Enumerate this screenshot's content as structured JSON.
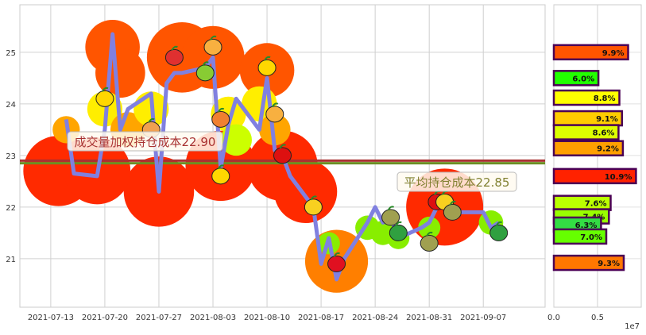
{
  "chart_data": [
    {
      "type": "line",
      "title": "",
      "xlabel": "",
      "ylabel": "",
      "ylim": [
        20.06,
        25.92
      ],
      "xlim": [
        "2021-07-09",
        "2021-09-15"
      ],
      "grid": true,
      "x_ticks": [
        "2021-07-13",
        "2021-07-20",
        "2021-07-27",
        "2021-08-03",
        "2021-08-10",
        "2021-08-17",
        "2021-08-24",
        "2021-08-31",
        "2021-09-07"
      ],
      "y_ticks": [
        21,
        22,
        23,
        24,
        25
      ],
      "line_color": "#8080e0",
      "price": [
        [
          "2021-07-15",
          23.7
        ],
        [
          "2021-07-16",
          22.65
        ],
        [
          "2021-07-19",
          22.6
        ],
        [
          "2021-07-20",
          23.5
        ],
        [
          "2021-07-21",
          25.35
        ],
        [
          "2021-07-22",
          23.5
        ],
        [
          "2021-07-23",
          23.9
        ],
        [
          "2021-07-26",
          24.2
        ],
        [
          "2021-07-27",
          22.3
        ],
        [
          "2021-07-28",
          24.4
        ],
        [
          "2021-07-29",
          24.6
        ],
        [
          "2021-07-30",
          24.6
        ],
        [
          "2021-08-02",
          24.7
        ],
        [
          "2021-08-03",
          24.9
        ],
        [
          "2021-08-04",
          22.75
        ],
        [
          "2021-08-05",
          23.6
        ],
        [
          "2021-08-06",
          24.1
        ],
        [
          "2021-08-09",
          23.5
        ],
        [
          "2021-08-10",
          24.5
        ],
        [
          "2021-08-11",
          23.1
        ],
        [
          "2021-08-12",
          23.0
        ],
        [
          "2021-08-13",
          22.6
        ],
        [
          "2021-08-16",
          22.0
        ],
        [
          "2021-08-17",
          20.9
        ],
        [
          "2021-08-18",
          21.4
        ],
        [
          "2021-08-19",
          20.6
        ],
        [
          "2021-08-20",
          21.0
        ],
        [
          "2021-08-23",
          21.7
        ],
        [
          "2021-08-24",
          22.0
        ],
        [
          "2021-08-25",
          21.7
        ],
        [
          "2021-08-26",
          21.8
        ],
        [
          "2021-08-27",
          21.4
        ],
        [
          "2021-08-30",
          21.6
        ],
        [
          "2021-08-31",
          21.7
        ],
        [
          "2021-09-01",
          22.0
        ],
        [
          "2021-09-02",
          22.2
        ],
        [
          "2021-09-03",
          21.9
        ],
        [
          "2021-09-06",
          21.9
        ],
        [
          "2021-09-07",
          21.9
        ],
        [
          "2021-09-08",
          21.6
        ],
        [
          "2021-09-09",
          21.7
        ]
      ],
      "bubbles": [
        {
          "date": "2021-07-14",
          "value": 22.7,
          "size": 10,
          "color": "#ff2a00"
        },
        {
          "date": "2021-07-19",
          "value": 22.7,
          "size": 9,
          "color": "#ff2a00"
        },
        {
          "date": "2021-07-21",
          "value": 25.1,
          "size": 6,
          "color": "#ff5500"
        },
        {
          "date": "2021-07-22",
          "value": 24.6,
          "size": 5,
          "color": "#ff5500"
        },
        {
          "date": "2021-07-27",
          "value": 22.3,
          "size": 10,
          "color": "#ff2a00"
        },
        {
          "date": "2021-07-30",
          "value": 24.9,
          "size": 10,
          "color": "#ff5500"
        },
        {
          "date": "2021-08-03",
          "value": 24.9,
          "size": 8,
          "color": "#ff5500"
        },
        {
          "date": "2021-08-04",
          "value": 22.8,
          "size": 10,
          "color": "#ff2a00"
        },
        {
          "date": "2021-08-10",
          "value": 24.65,
          "size": 6,
          "color": "#ff5500"
        },
        {
          "date": "2021-08-12",
          "value": 22.8,
          "size": 10,
          "color": "#ff2a00"
        },
        {
          "date": "2021-08-15",
          "value": 22.3,
          "size": 8,
          "color": "#ff2a00"
        },
        {
          "date": "2021-08-19",
          "value": 20.95,
          "size": 8,
          "color": "#ff7f00"
        },
        {
          "date": "2021-09-02",
          "value": 22.0,
          "size": 12,
          "color": "#ff2a00"
        },
        {
          "date": "2021-07-15",
          "value": 23.5,
          "size": 1.5,
          "color": "#ffa500"
        },
        {
          "date": "2021-07-20",
          "value": 23.9,
          "size": 2.5,
          "color": "#ffee00"
        },
        {
          "date": "2021-07-23",
          "value": 23.5,
          "size": 2.5,
          "color": "#ffa500"
        },
        {
          "date": "2021-07-26",
          "value": 23.9,
          "size": 2.5,
          "color": "#ffee00"
        },
        {
          "date": "2021-08-05",
          "value": 23.8,
          "size": 2.5,
          "color": "#ffee00"
        },
        {
          "date": "2021-08-06",
          "value": 23.3,
          "size": 2,
          "color": "#ccff00"
        },
        {
          "date": "2021-08-09",
          "value": 24.0,
          "size": 2.5,
          "color": "#ffee00"
        },
        {
          "date": "2021-08-11",
          "value": 23.5,
          "size": 2,
          "color": "#ffa500"
        },
        {
          "date": "2021-08-18",
          "value": 21.3,
          "size": 1,
          "color": "#88ee00"
        },
        {
          "date": "2021-08-23",
          "value": 21.6,
          "size": 1.2,
          "color": "#88ee00"
        },
        {
          "date": "2021-08-25",
          "value": 21.5,
          "size": 1.2,
          "color": "#88ee00"
        },
        {
          "date": "2021-08-27",
          "value": 21.4,
          "size": 1,
          "color": "#88ee00"
        },
        {
          "date": "2021-08-31",
          "value": 21.6,
          "size": 1,
          "color": "#88ee00"
        },
        {
          "date": "2021-09-08",
          "value": 21.7,
          "size": 1.2,
          "color": "#88ee00"
        }
      ],
      "fruits": [
        {
          "date": "2021-07-20",
          "value": 24.1,
          "icon": "banana",
          "color": "#ffd700"
        },
        {
          "date": "2021-07-26",
          "value": 23.5,
          "icon": "radish",
          "color": "#f0a050"
        },
        {
          "date": "2021-07-29",
          "value": 24.9,
          "icon": "watermelon",
          "color": "#e03030"
        },
        {
          "date": "2021-08-02",
          "value": 24.6,
          "icon": "kiwi",
          "color": "#88cc33"
        },
        {
          "date": "2021-08-03",
          "value": 25.1,
          "icon": "pineapple",
          "color": "#f8b040"
        },
        {
          "date": "2021-08-04",
          "value": 23.7,
          "icon": "carrot",
          "color": "#f08030"
        },
        {
          "date": "2021-08-04",
          "value": 22.6,
          "icon": "banana",
          "color": "#ffd700"
        },
        {
          "date": "2021-08-10",
          "value": 24.7,
          "icon": "banana",
          "color": "#ffd700"
        },
        {
          "date": "2021-08-11",
          "value": 23.8,
          "icon": "pineapple",
          "color": "#f8b040"
        },
        {
          "date": "2021-08-12",
          "value": 23.0,
          "icon": "apple",
          "color": "#dd1010"
        },
        {
          "date": "2021-08-16",
          "value": 22.0,
          "icon": "corn",
          "color": "#f8d020"
        },
        {
          "date": "2021-08-19",
          "value": 20.9,
          "icon": "strawberry",
          "color": "#e01020"
        },
        {
          "date": "2021-08-26",
          "value": 21.8,
          "icon": "pear",
          "color": "#a0a050"
        },
        {
          "date": "2021-08-27",
          "value": 21.5,
          "icon": "peas",
          "color": "#30a040"
        },
        {
          "date": "2021-08-31",
          "value": 21.3,
          "icon": "pear",
          "color": "#a0a050"
        },
        {
          "date": "2021-09-01",
          "value": 22.1,
          "icon": "apple",
          "color": "#dd1010"
        },
        {
          "date": "2021-09-02",
          "value": 22.1,
          "icon": "corn",
          "color": "#f8d020"
        },
        {
          "date": "2021-09-03",
          "value": 21.9,
          "icon": "pear",
          "color": "#a0a050"
        },
        {
          "date": "2021-09-09",
          "value": 21.5,
          "icon": "peas",
          "color": "#30a040"
        }
      ],
      "hlines": [
        {
          "value": 22.9,
          "color": "#a83232",
          "label": "成交量加权持仓成本22.90",
          "label_color": "#a83232"
        },
        {
          "value": 22.85,
          "color": "#6b8e23",
          "label": "平均持仓成本22.85",
          "label_color": "#808030"
        }
      ]
    },
    {
      "type": "bar",
      "orientation": "horizontal",
      "xlim": [
        0,
        10000000
      ],
      "x_ticks": [
        "0.0",
        "0.5"
      ],
      "x_offset_label": "1e7",
      "edge_color": "#4b0055",
      "bars": [
        {
          "price": 25.0,
          "value": 8500000,
          "label": "9.9%",
          "color": "#ff5500"
        },
        {
          "price": 24.5,
          "value": 5100000,
          "label": "6.0%",
          "color": "#22ff00"
        },
        {
          "price": 24.12,
          "value": 7500000,
          "label": "8.8%",
          "color": "#ffff00"
        },
        {
          "price": 23.72,
          "value": 7800000,
          "label": "9.1%",
          "color": "#ffcc00"
        },
        {
          "price": 23.45,
          "value": 7400000,
          "label": "8.6%",
          "color": "#ddff00"
        },
        {
          "price": 23.14,
          "value": 7900000,
          "label": "9.2%",
          "color": "#ffa000"
        },
        {
          "price": 22.6,
          "value": 9400000,
          "label": "10.9%",
          "color": "#ff2200"
        },
        {
          "price": 22.08,
          "value": 6500000,
          "label": "7.6%",
          "color": "#bbff00"
        },
        {
          "price": 21.82,
          "value": 6300000,
          "label": "7.4%",
          "color": "#99ff00"
        },
        {
          "price": 21.66,
          "value": 5400000,
          "label": "6.3%",
          "color": "#33dd44"
        },
        {
          "price": 21.43,
          "value": 6000000,
          "label": "7.0%",
          "color": "#66ff00"
        },
        {
          "price": 20.92,
          "value": 8000000,
          "label": "9.3%",
          "color": "#ff7700"
        }
      ]
    }
  ]
}
